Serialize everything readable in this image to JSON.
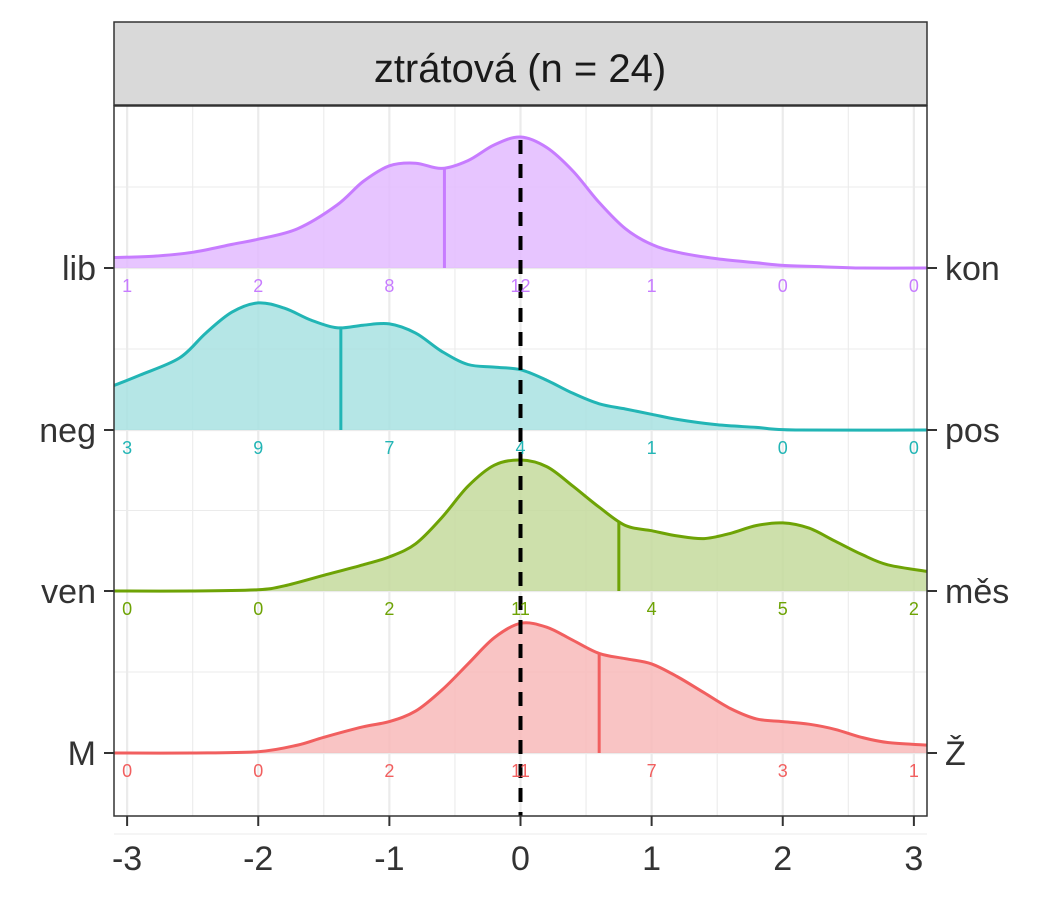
{
  "chart_data": {
    "type": "ridgeline-density",
    "facet_title": "ztrátová (n = 24)",
    "xlim": [
      -3.1,
      3.1
    ],
    "x_ticks": [
      -3,
      -2,
      -1,
      0,
      1,
      2,
      3
    ],
    "x_tick_labels": [
      "-3",
      "-2",
      "-1",
      "0",
      "1",
      "2",
      "3"
    ],
    "reference_line_x": 0,
    "count_positions": [
      -3,
      -2,
      -1,
      0,
      1,
      2,
      3
    ],
    "series": [
      {
        "left_label": "lib",
        "right_label": "kon",
        "color": "#C77CFF",
        "fill": "#E3BBFF",
        "median": -0.58,
        "counts": [
          "1",
          "2",
          "8",
          "12",
          "1",
          "0",
          "0"
        ],
        "density": [
          [
            -3.1,
            0.08
          ],
          [
            -2.8,
            0.09
          ],
          [
            -2.5,
            0.12
          ],
          [
            -2.2,
            0.18
          ],
          [
            -2.0,
            0.22
          ],
          [
            -1.7,
            0.3
          ],
          [
            -1.4,
            0.48
          ],
          [
            -1.2,
            0.66
          ],
          [
            -1.0,
            0.78
          ],
          [
            -0.8,
            0.8
          ],
          [
            -0.6,
            0.76
          ],
          [
            -0.4,
            0.82
          ],
          [
            -0.2,
            0.94
          ],
          [
            0.0,
            1.0
          ],
          [
            0.2,
            0.92
          ],
          [
            0.4,
            0.74
          ],
          [
            0.6,
            0.5
          ],
          [
            0.8,
            0.3
          ],
          [
            1.0,
            0.18
          ],
          [
            1.2,
            0.12
          ],
          [
            1.5,
            0.07
          ],
          [
            1.8,
            0.04
          ],
          [
            2.0,
            0.02
          ],
          [
            2.3,
            0.01
          ],
          [
            2.6,
            0.0
          ],
          [
            3.1,
            0.0
          ]
        ]
      },
      {
        "left_label": "neg",
        "right_label": "pos",
        "color": "#22B5B5",
        "fill": "#A8E2E2",
        "median": -1.37,
        "counts": [
          "3",
          "9",
          "7",
          "4",
          "1",
          "0",
          "0"
        ],
        "density": [
          [
            -3.1,
            0.34
          ],
          [
            -2.9,
            0.42
          ],
          [
            -2.6,
            0.55
          ],
          [
            -2.4,
            0.74
          ],
          [
            -2.2,
            0.9
          ],
          [
            -2.0,
            0.97
          ],
          [
            -1.8,
            0.93
          ],
          [
            -1.6,
            0.84
          ],
          [
            -1.4,
            0.78
          ],
          [
            -1.2,
            0.8
          ],
          [
            -1.0,
            0.81
          ],
          [
            -0.8,
            0.74
          ],
          [
            -0.6,
            0.6
          ],
          [
            -0.4,
            0.5
          ],
          [
            -0.2,
            0.48
          ],
          [
            0.0,
            0.46
          ],
          [
            0.2,
            0.38
          ],
          [
            0.4,
            0.28
          ],
          [
            0.6,
            0.2
          ],
          [
            0.8,
            0.16
          ],
          [
            1.0,
            0.12
          ],
          [
            1.2,
            0.08
          ],
          [
            1.5,
            0.04
          ],
          [
            1.8,
            0.02
          ],
          [
            2.1,
            0.0
          ],
          [
            3.1,
            0.0
          ]
        ]
      },
      {
        "left_label": "ven",
        "right_label": "měs",
        "color": "#6EA305",
        "fill": "#C4DB9C",
        "median": 0.75,
        "counts": [
          "0",
          "0",
          "2",
          "11",
          "4",
          "5",
          "2"
        ],
        "density": [
          [
            -3.1,
            0.0
          ],
          [
            -2.5,
            0.0
          ],
          [
            -2.0,
            0.01
          ],
          [
            -1.8,
            0.04
          ],
          [
            -1.5,
            0.12
          ],
          [
            -1.2,
            0.2
          ],
          [
            -1.0,
            0.26
          ],
          [
            -0.8,
            0.36
          ],
          [
            -0.6,
            0.56
          ],
          [
            -0.4,
            0.8
          ],
          [
            -0.2,
            0.96
          ],
          [
            0.0,
            1.0
          ],
          [
            0.2,
            0.95
          ],
          [
            0.4,
            0.8
          ],
          [
            0.6,
            0.64
          ],
          [
            0.8,
            0.5
          ],
          [
            1.0,
            0.46
          ],
          [
            1.2,
            0.42
          ],
          [
            1.4,
            0.4
          ],
          [
            1.6,
            0.44
          ],
          [
            1.8,
            0.5
          ],
          [
            2.0,
            0.52
          ],
          [
            2.2,
            0.48
          ],
          [
            2.4,
            0.38
          ],
          [
            2.6,
            0.28
          ],
          [
            2.8,
            0.2
          ],
          [
            3.1,
            0.15
          ]
        ]
      },
      {
        "left_label": "M",
        "right_label": "Ž",
        "color": "#F15F5F",
        "fill": "#F8BABA",
        "median": 0.6,
        "counts": [
          "0",
          "0",
          "2",
          "11",
          "7",
          "3",
          "1"
        ],
        "density": [
          [
            -3.1,
            0.0
          ],
          [
            -2.5,
            0.0
          ],
          [
            -2.0,
            0.01
          ],
          [
            -1.7,
            0.06
          ],
          [
            -1.5,
            0.12
          ],
          [
            -1.2,
            0.2
          ],
          [
            -1.0,
            0.24
          ],
          [
            -0.8,
            0.32
          ],
          [
            -0.6,
            0.48
          ],
          [
            -0.4,
            0.68
          ],
          [
            -0.2,
            0.88
          ],
          [
            0.0,
            0.99
          ],
          [
            0.2,
            0.96
          ],
          [
            0.4,
            0.86
          ],
          [
            0.6,
            0.76
          ],
          [
            0.8,
            0.72
          ],
          [
            1.0,
            0.68
          ],
          [
            1.2,
            0.58
          ],
          [
            1.4,
            0.46
          ],
          [
            1.6,
            0.34
          ],
          [
            1.8,
            0.26
          ],
          [
            2.0,
            0.24
          ],
          [
            2.2,
            0.22
          ],
          [
            2.4,
            0.18
          ],
          [
            2.6,
            0.12
          ],
          [
            2.8,
            0.08
          ],
          [
            3.1,
            0.06
          ]
        ]
      }
    ]
  }
}
